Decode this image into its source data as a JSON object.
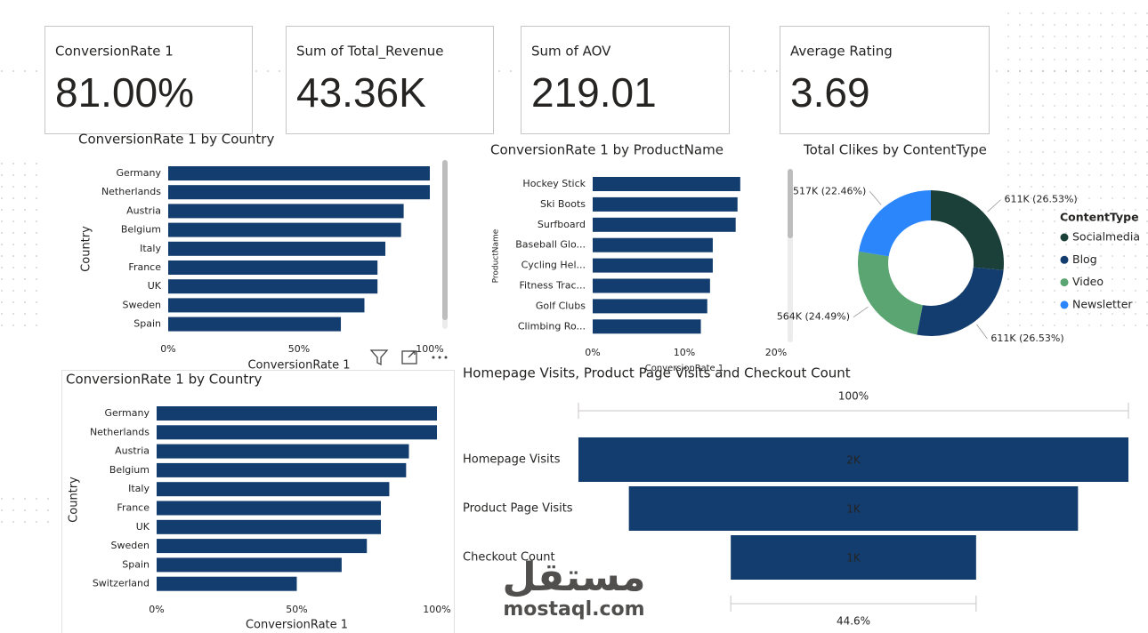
{
  "cards": [
    {
      "label": "ConversionRate 1",
      "value": "81.00%"
    },
    {
      "label": "Sum of Total_Revenue",
      "value": "43.36K"
    },
    {
      "label": "Sum of AOV",
      "value": "219.01"
    },
    {
      "label": "Average Rating",
      "value": "3.69"
    }
  ],
  "chart_data": [
    {
      "type": "hbar",
      "title": "ConversionRate 1 by Country",
      "x_label": "ConversionRate 1",
      "y_label": "Country",
      "categories": [
        "Germany",
        "Netherlands",
        "Austria",
        "Belgium",
        "Italy",
        "France",
        "UK",
        "Sweden",
        "Spain"
      ],
      "values": [
        100,
        100,
        90,
        89,
        83,
        80,
        80,
        75,
        66
      ],
      "color": "#123d6e",
      "xlim": [
        0,
        100
      ],
      "xticks": [
        {
          "value": 0,
          "label": "0%"
        },
        {
          "value": 50,
          "label": "50%"
        },
        {
          "value": 100,
          "label": "100%"
        }
      ]
    },
    {
      "type": "hbar",
      "title": "ConversionRate 1 by ProductName",
      "x_label": "ConversionRate 1",
      "y_label": "ProductName",
      "categories": [
        "Hockey Stick",
        "Ski Boots",
        "Surfboard",
        "Baseball Glo...",
        "Cycling Hel...",
        "Fitness Trac...",
        "Golf Clubs",
        "Climbing Ro..."
      ],
      "values": [
        16.1,
        15.8,
        15.6,
        13.1,
        13.1,
        12.8,
        12.5,
        11.8
      ],
      "color": "#123d6e",
      "xlim": [
        0,
        20
      ],
      "xticks": [
        {
          "value": 0,
          "label": "0%"
        },
        {
          "value": 10,
          "label": "10%"
        },
        {
          "value": 20,
          "label": "20%"
        }
      ]
    },
    {
      "type": "donut",
      "title": "Total Clikes by ContentType",
      "legend_title": "ContentType",
      "categories": [
        "Socialmedia",
        "Blog",
        "Video",
        "Newsletter"
      ],
      "values": [
        611000,
        611000,
        564000,
        517000
      ],
      "value_labels": [
        "611K (26.53%)",
        "611K (26.53%)",
        "564K (24.49%)",
        "517K (22.46%)"
      ],
      "colors": [
        "#1b403a",
        "#123d6e",
        "#5aa571",
        "#2b86fb"
      ]
    },
    {
      "type": "hbar",
      "title": "ConversionRate 1 by Country",
      "x_label": "ConversionRate 1",
      "y_label": "Country",
      "categories": [
        "Germany",
        "Netherlands",
        "Austria",
        "Belgium",
        "Italy",
        "France",
        "UK",
        "Sweden",
        "Spain",
        "Switzerland"
      ],
      "values": [
        100,
        100,
        90,
        89,
        83,
        80,
        80,
        75,
        66,
        50
      ],
      "color": "#123d6e",
      "xlim": [
        0,
        100
      ],
      "xticks": [
        {
          "value": 0,
          "label": "0%"
        },
        {
          "value": 50,
          "label": "50%"
        },
        {
          "value": 100,
          "label": "100%"
        }
      ]
    },
    {
      "type": "funnel",
      "title": "Homepage Visits, Product Page Visits and Checkout Count",
      "categories": [
        "Homepage Visits",
        "Product Page Visits",
        "Checkout Count"
      ],
      "values": [
        1800,
        1470,
        803
      ],
      "value_labels": [
        "2K",
        "1K",
        "1K"
      ],
      "color": "#123d6e",
      "top_label": "100%",
      "bottom_label": "44.6%"
    }
  ],
  "watermark": {
    "arabic": "مستقل",
    "latin": "mostaql.com"
  }
}
